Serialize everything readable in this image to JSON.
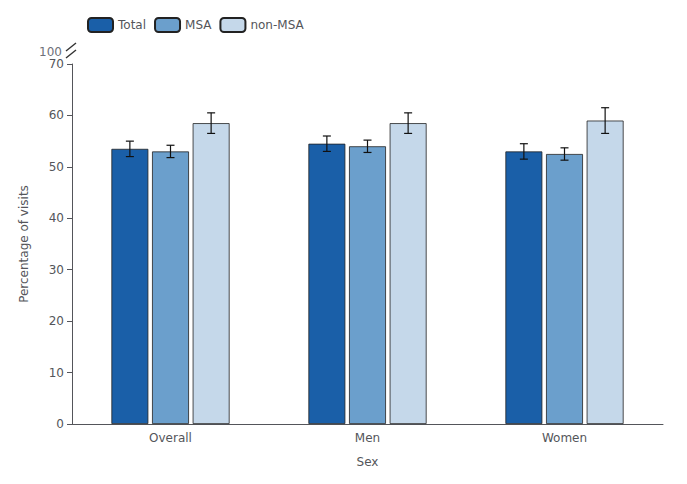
{
  "chart_data": {
    "type": "bar",
    "categories": [
      "Overall",
      "Men",
      "Women"
    ],
    "series": [
      {
        "name": "Total",
        "color": "#1a5fa8",
        "values": [
          53.5,
          54.5,
          53.0
        ],
        "errors_up": [
          1.5,
          1.5,
          1.5
        ],
        "errors_down": [
          1.5,
          1.5,
          1.5
        ]
      },
      {
        "name": "MSA",
        "color": "#6b9fcc",
        "values": [
          53.0,
          54.0,
          52.5
        ],
        "errors_up": [
          1.2,
          1.2,
          1.2
        ],
        "errors_down": [
          1.2,
          1.2,
          1.2
        ]
      },
      {
        "name": "non-MSA",
        "color": "#c5d8ea",
        "values": [
          58.5,
          58.5,
          59.0
        ],
        "errors_up": [
          2.0,
          2.0,
          2.5
        ],
        "errors_down": [
          2.0,
          2.0,
          2.5
        ]
      }
    ],
    "xlabel": "Sex",
    "ylabel": "Percentage of visits",
    "ylim": [
      0,
      70
    ],
    "yticks": [
      0,
      10,
      20,
      30,
      40,
      50,
      60,
      70
    ],
    "annotations": [
      "100"
    ],
    "legend": "upper left",
    "grid": false
  }
}
